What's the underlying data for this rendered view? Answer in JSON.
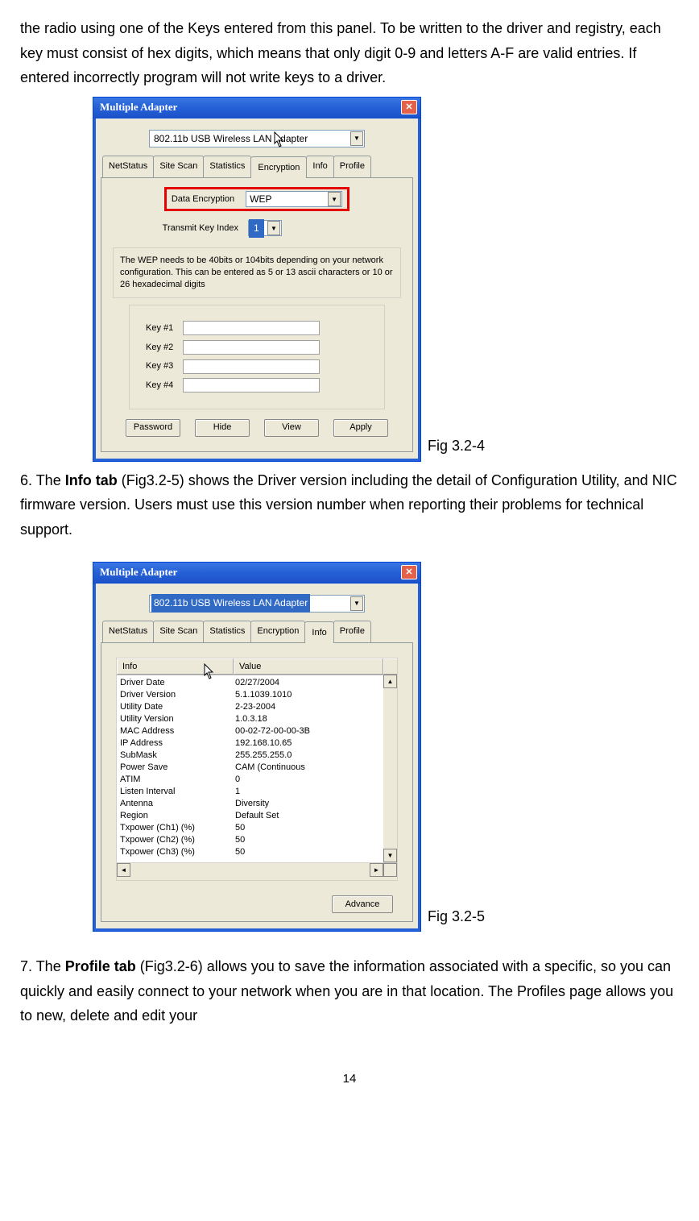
{
  "para_top": "the radio using one of the Keys entered from this panel. To be written to the driver and registry, each key must consist of hex digits, which means that only digit 0-9 and letters A-F are valid entries. If entered incorrectly program will not write keys to a driver.",
  "fig1_caption": " Fig 3.2-4",
  "para_mid_prefix": "6. The ",
  "para_mid_bold": "Info tab",
  "para_mid_suffix": " (Fig3.2-5) shows the Driver version including the detail of Configuration Utility, and NIC firmware version. Users must use this version number when reporting their problems for technical support.",
  "fig2_caption": "Fig 3.2-5",
  "para_bot_prefix": "7. The ",
  "para_bot_bold": "Profile tab",
  "para_bot_suffix": " (Fig3.2-6) allows you to save the information associated with a specific, so you can quickly and easily connect to your network when you are in that location. The Profiles page allows you to new, delete and edit your",
  "page_number": "14",
  "window": {
    "title": "Multiple Adapter",
    "adapter_name": "802.11b USB Wireless LAN Adapter",
    "tabs": [
      "NetStatus",
      "Site Scan",
      "Statistics",
      "Encryption",
      "Info",
      "Profile"
    ]
  },
  "encryption": {
    "data_enc_label": "Data Encryption",
    "data_enc_value": "WEP",
    "tki_label": "Transmit Key Index",
    "tki_value": "1",
    "help_text": "The WEP needs to be 40bits or 104bits depending on your network configuration. This can be entered as 5 or 13 ascii characters or 10 or 26 hexadecimal digits",
    "key_labels": [
      "Key #1",
      "Key #2",
      "Key #3",
      "Key #4"
    ],
    "buttons": [
      "Password",
      "Hide",
      "View",
      "Apply"
    ]
  },
  "info": {
    "head_info": "Info",
    "head_value": "Value",
    "rows": [
      [
        "Driver Date",
        "02/27/2004"
      ],
      [
        "Driver Version",
        "5.1.1039.1010"
      ],
      [
        "Utility Date",
        "2-23-2004"
      ],
      [
        "Utility Version",
        "1.0.3.18"
      ],
      [
        "MAC Address",
        "00-02-72-00-00-3B"
      ],
      [
        "IP Address",
        "192.168.10.65"
      ],
      [
        "SubMask",
        "255.255.255.0"
      ],
      [
        "Power Save",
        "CAM (Continuous"
      ],
      [
        "ATIM",
        "0"
      ],
      [
        "Listen Interval",
        "1"
      ],
      [
        "Antenna",
        "Diversity"
      ],
      [
        "Region",
        "Default Set"
      ],
      [
        "Txpower (Ch1) (%)",
        "50"
      ],
      [
        "Txpower (Ch2) (%)",
        "50"
      ],
      [
        "Txpower (Ch3) (%)",
        "50"
      ]
    ],
    "advance_btn": "Advance"
  }
}
